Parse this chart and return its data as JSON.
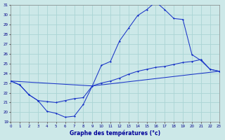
{
  "xlabel": "Graphe des températures (°c)",
  "bg_color": "#cce8e8",
  "grid_color": "#aad4d4",
  "line_color": "#1a35c8",
  "xlim": [
    0,
    23
  ],
  "ylim": [
    19,
    31
  ],
  "yticks": [
    19,
    20,
    21,
    22,
    23,
    24,
    25,
    26,
    27,
    28,
    29,
    30,
    31
  ],
  "xticks": [
    0,
    1,
    2,
    3,
    4,
    5,
    6,
    7,
    8,
    9,
    10,
    11,
    12,
    13,
    14,
    15,
    16,
    17,
    18,
    19,
    20,
    21,
    22,
    23
  ],
  "line1_x": [
    0,
    1,
    2,
    3,
    4,
    5,
    6,
    7,
    8,
    9,
    10,
    11,
    12,
    13,
    14,
    15,
    16,
    17,
    18,
    19,
    20,
    21,
    22,
    23
  ],
  "line1_y": [
    23.2,
    22.8,
    21.8,
    21.2,
    20.1,
    19.9,
    19.5,
    19.6,
    20.8,
    22.7,
    23.0,
    23.2,
    23.5,
    23.9,
    24.2,
    24.4,
    24.6,
    24.7,
    24.9,
    25.1,
    25.2,
    25.4,
    24.4,
    24.2
  ],
  "line2_x": [
    0,
    1,
    2,
    3,
    4,
    5,
    6,
    7,
    8,
    9,
    10,
    11,
    12,
    13,
    14,
    15,
    16,
    17,
    18,
    19,
    20,
    21,
    22,
    23
  ],
  "line2_y": [
    23.2,
    22.8,
    21.8,
    21.2,
    21.1,
    21.0,
    21.2,
    21.4,
    21.5,
    22.7,
    24.8,
    25.2,
    27.3,
    28.6,
    29.9,
    30.5,
    31.3,
    30.5,
    29.6,
    29.5,
    25.9,
    25.3,
    24.4,
    24.2
  ],
  "line3_x": [
    0,
    9,
    23
  ],
  "line3_y": [
    23.2,
    22.7,
    24.2
  ]
}
